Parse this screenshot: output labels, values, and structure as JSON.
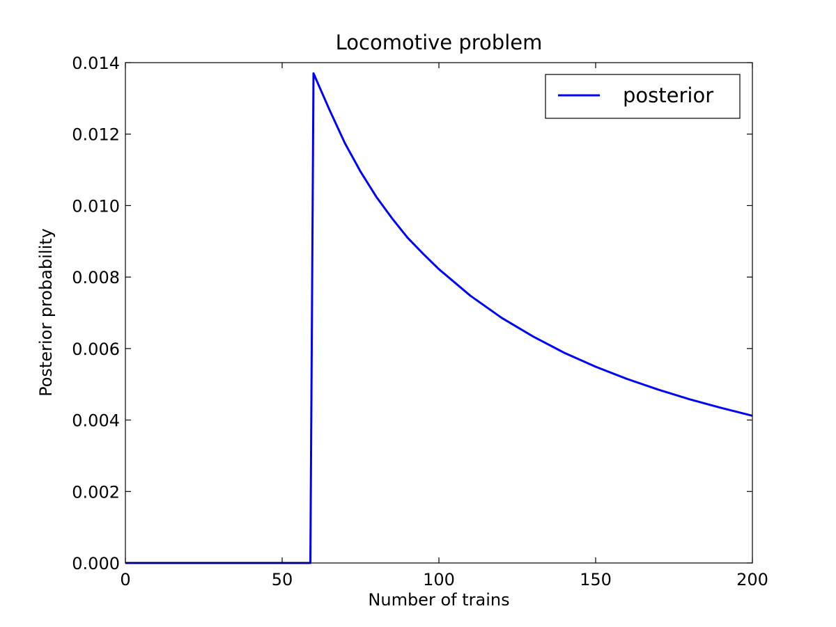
{
  "chart_data": {
    "type": "line",
    "title": "Locomotive problem",
    "xlabel": "Number of trains",
    "ylabel": "Posterior probability",
    "xlim": [
      0,
      200
    ],
    "ylim": [
      0,
      0.014
    ],
    "x_ticks": [
      "0",
      "50",
      "100",
      "150",
      "200"
    ],
    "y_ticks": [
      "0.000",
      "0.002",
      "0.004",
      "0.006",
      "0.008",
      "0.010",
      "0.012",
      "0.014"
    ],
    "grid": false,
    "legend_position": "top-right",
    "series": [
      {
        "name": "posterior",
        "color": "#0000ff",
        "x": [
          0,
          59,
          60,
          65,
          70,
          75,
          80,
          85,
          90,
          95,
          100,
          110,
          120,
          130,
          140,
          150,
          160,
          170,
          180,
          190,
          200
        ],
        "y": [
          0,
          0,
          0.0137,
          0.0127,
          0.01175,
          0.01095,
          0.01025,
          0.00965,
          0.0091,
          0.00865,
          0.00822,
          0.00748,
          0.00686,
          0.00634,
          0.00588,
          0.00549,
          0.00515,
          0.00485,
          0.00458,
          0.00434,
          0.00412
        ]
      }
    ]
  }
}
